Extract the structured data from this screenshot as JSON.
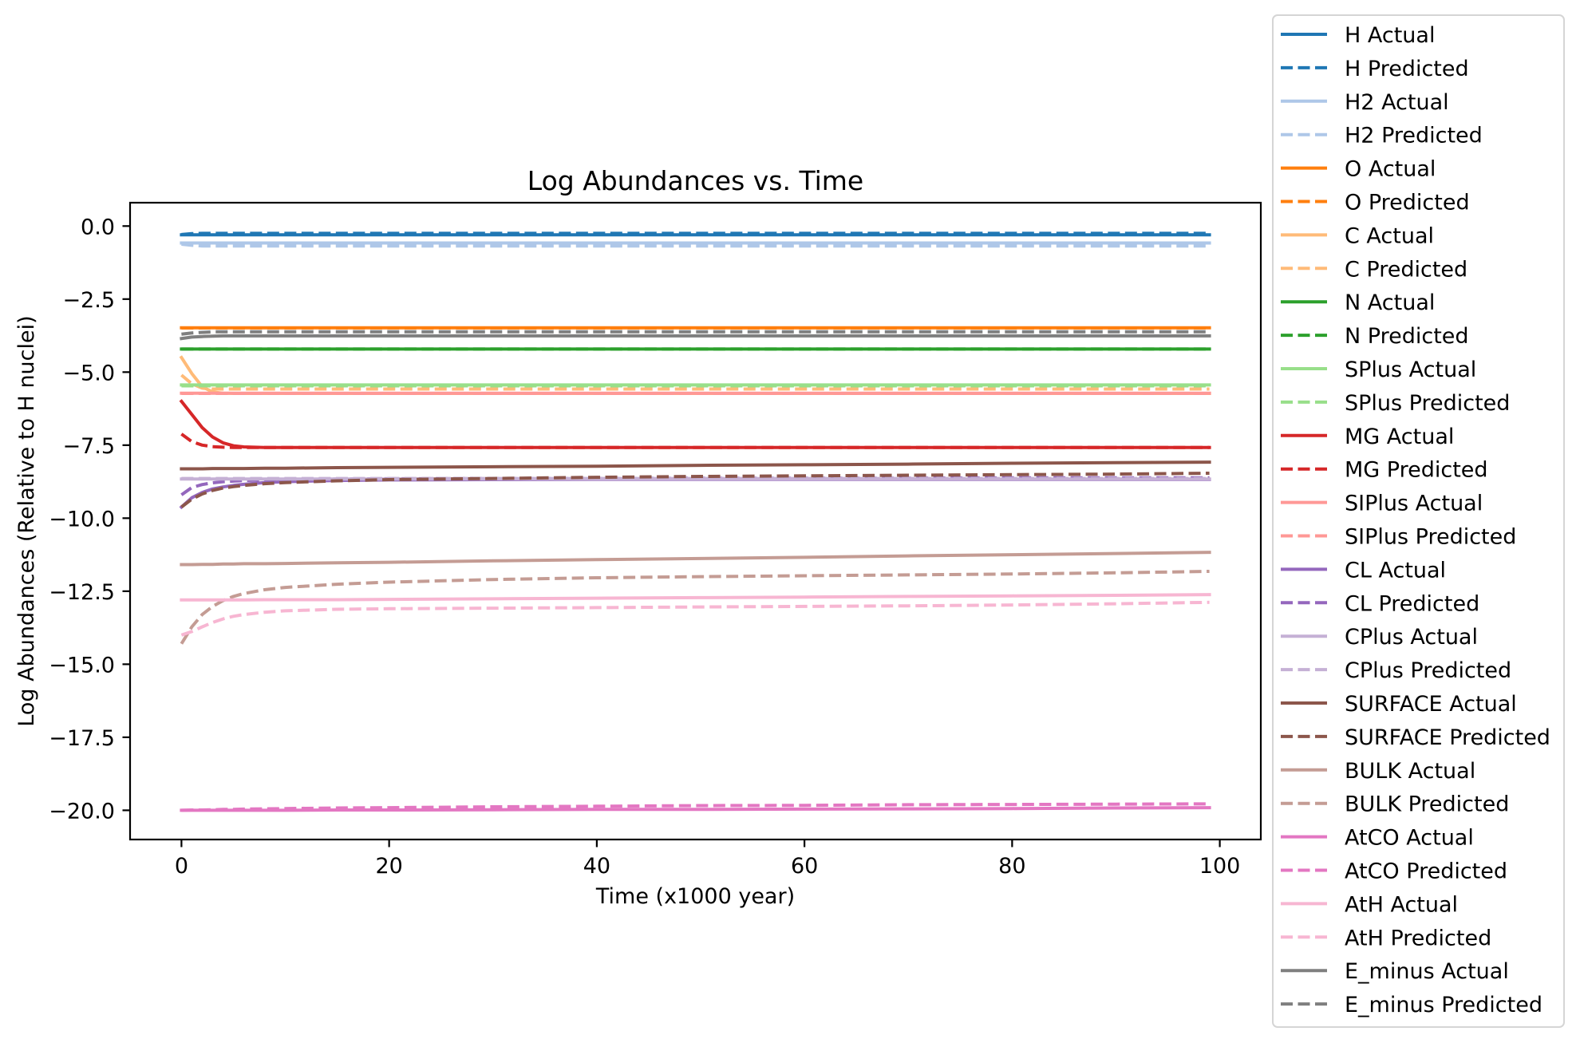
{
  "chart_data": {
    "type": "line",
    "title": "Log Abundances vs. Time",
    "xlabel": "Time (x1000 year)",
    "ylabel": "Log Abundances (Relative to H nuclei)",
    "xlim": [
      -4.95,
      103.95
    ],
    "ylim": [
      -21.0,
      0.8
    ],
    "xticks": [
      0,
      20,
      40,
      60,
      80,
      100
    ],
    "xtick_labels": [
      "0",
      "20",
      "40",
      "60",
      "80",
      "100"
    ],
    "yticks": [
      0,
      -2.5,
      -5,
      -7.5,
      -10,
      -12.5,
      -15,
      -17.5,
      -20
    ],
    "ytick_labels": [
      "0.0",
      "−2.5",
      "−5.0",
      "−7.5",
      "−10.0",
      "−12.5",
      "−15.0",
      "−17.5",
      "−20.0"
    ],
    "grid": false,
    "legend_placement": "outside right",
    "x": [
      0,
      1,
      2,
      3,
      4,
      5,
      6,
      8,
      10,
      15,
      20,
      30,
      40,
      50,
      60,
      70,
      80,
      90,
      99
    ],
    "series": [
      {
        "name": "H Actual",
        "color": "#1f77b4",
        "linestyle": "solid",
        "values": [
          -0.3,
          -0.3,
          -0.3,
          -0.3,
          -0.3,
          -0.3,
          -0.3,
          -0.3,
          -0.3,
          -0.3,
          -0.3,
          -0.3,
          -0.3,
          -0.3,
          -0.3,
          -0.3,
          -0.3,
          -0.3,
          -0.3
        ]
      },
      {
        "name": "H Predicted",
        "color": "#1f77b4",
        "linestyle": "dashed",
        "values": [
          -0.29,
          -0.26,
          -0.25,
          -0.25,
          -0.25,
          -0.25,
          -0.25,
          -0.25,
          -0.25,
          -0.25,
          -0.25,
          -0.25,
          -0.25,
          -0.25,
          -0.25,
          -0.25,
          -0.25,
          -0.25,
          -0.25
        ]
      },
      {
        "name": "H2 Actual",
        "color": "#aec7e8",
        "linestyle": "solid",
        "values": [
          -0.58,
          -0.58,
          -0.58,
          -0.58,
          -0.58,
          -0.58,
          -0.58,
          -0.58,
          -0.58,
          -0.58,
          -0.58,
          -0.58,
          -0.58,
          -0.58,
          -0.58,
          -0.58,
          -0.58,
          -0.58,
          -0.58
        ]
      },
      {
        "name": "H2 Predicted",
        "color": "#aec7e8",
        "linestyle": "dashed",
        "values": [
          -0.62,
          -0.66,
          -0.68,
          -0.68,
          -0.68,
          -0.68,
          -0.68,
          -0.68,
          -0.68,
          -0.68,
          -0.68,
          -0.68,
          -0.68,
          -0.68,
          -0.68,
          -0.68,
          -0.68,
          -0.68,
          -0.68
        ]
      },
      {
        "name": "O Actual",
        "color": "#ff7f0e",
        "linestyle": "solid",
        "values": [
          -3.48,
          -3.48,
          -3.48,
          -3.48,
          -3.48,
          -3.48,
          -3.48,
          -3.48,
          -3.48,
          -3.48,
          -3.48,
          -3.48,
          -3.48,
          -3.48,
          -3.48,
          -3.48,
          -3.48,
          -3.48,
          -3.48
        ]
      },
      {
        "name": "O Predicted",
        "color": "#ff7f0e",
        "linestyle": "dashed",
        "values": [
          -3.49,
          -3.49,
          -3.49,
          -3.49,
          -3.49,
          -3.49,
          -3.49,
          -3.49,
          -3.49,
          -3.49,
          -3.49,
          -3.49,
          -3.49,
          -3.49,
          -3.49,
          -3.49,
          -3.49,
          -3.49,
          -3.49
        ]
      },
      {
        "name": "C Actual",
        "color": "#ffbb78",
        "linestyle": "solid",
        "values": [
          -4.5,
          -5.05,
          -5.5,
          -5.68,
          -5.72,
          -5.73,
          -5.73,
          -5.73,
          -5.73,
          -5.73,
          -5.73,
          -5.73,
          -5.73,
          -5.73,
          -5.73,
          -5.73,
          -5.73,
          -5.73,
          -5.73
        ]
      },
      {
        "name": "C Predicted",
        "color": "#ffbb78",
        "linestyle": "dashed",
        "values": [
          -5.1,
          -5.4,
          -5.55,
          -5.58,
          -5.58,
          -5.58,
          -5.58,
          -5.58,
          -5.58,
          -5.58,
          -5.58,
          -5.58,
          -5.58,
          -5.58,
          -5.58,
          -5.58,
          -5.58,
          -5.58,
          -5.58
        ]
      },
      {
        "name": "N Actual",
        "color": "#2ca02c",
        "linestyle": "solid",
        "values": [
          -4.21,
          -4.21,
          -4.21,
          -4.21,
          -4.21,
          -4.21,
          -4.21,
          -4.21,
          -4.21,
          -4.21,
          -4.21,
          -4.21,
          -4.21,
          -4.21,
          -4.21,
          -4.21,
          -4.21,
          -4.21,
          -4.21
        ]
      },
      {
        "name": "N Predicted",
        "color": "#2ca02c",
        "linestyle": "dashed",
        "values": [
          -4.21,
          -4.21,
          -4.21,
          -4.21,
          -4.21,
          -4.21,
          -4.21,
          -4.21,
          -4.21,
          -4.21,
          -4.21,
          -4.21,
          -4.21,
          -4.21,
          -4.21,
          -4.21,
          -4.21,
          -4.21,
          -4.21
        ]
      },
      {
        "name": "SPlus Actual",
        "color": "#98df8a",
        "linestyle": "solid",
        "values": [
          -5.44,
          -5.44,
          -5.44,
          -5.44,
          -5.44,
          -5.44,
          -5.44,
          -5.44,
          -5.44,
          -5.44,
          -5.44,
          -5.44,
          -5.44,
          -5.44,
          -5.44,
          -5.44,
          -5.44,
          -5.44,
          -5.44
        ]
      },
      {
        "name": "SPlus Predicted",
        "color": "#98df8a",
        "linestyle": "dashed",
        "values": [
          -5.47,
          -5.47,
          -5.47,
          -5.47,
          -5.47,
          -5.47,
          -5.47,
          -5.47,
          -5.47,
          -5.47,
          -5.47,
          -5.47,
          -5.47,
          -5.47,
          -5.47,
          -5.47,
          -5.47,
          -5.47,
          -5.47
        ]
      },
      {
        "name": "MG Actual",
        "color": "#d62728",
        "linestyle": "solid",
        "values": [
          -6.0,
          -6.45,
          -6.9,
          -7.22,
          -7.42,
          -7.52,
          -7.56,
          -7.58,
          -7.58,
          -7.58,
          -7.58,
          -7.58,
          -7.58,
          -7.58,
          -7.58,
          -7.58,
          -7.58,
          -7.58,
          -7.58
        ]
      },
      {
        "name": "MG Predicted",
        "color": "#d62728",
        "linestyle": "dashed",
        "values": [
          -7.12,
          -7.38,
          -7.5,
          -7.55,
          -7.57,
          -7.58,
          -7.58,
          -7.58,
          -7.58,
          -7.58,
          -7.58,
          -7.58,
          -7.58,
          -7.58,
          -7.58,
          -7.58,
          -7.58,
          -7.58,
          -7.58
        ]
      },
      {
        "name": "SIPlus Actual",
        "color": "#ff9896",
        "linestyle": "solid",
        "values": [
          -5.72,
          -5.72,
          -5.72,
          -5.72,
          -5.72,
          -5.72,
          -5.72,
          -5.72,
          -5.72,
          -5.72,
          -5.72,
          -5.72,
          -5.72,
          -5.72,
          -5.72,
          -5.72,
          -5.72,
          -5.72,
          -5.72
        ]
      },
      {
        "name": "SIPlus Predicted",
        "color": "#ff9896",
        "linestyle": "dashed",
        "values": [
          -5.73,
          -5.73,
          -5.73,
          -5.73,
          -5.73,
          -5.73,
          -5.73,
          -5.73,
          -5.73,
          -5.73,
          -5.73,
          -5.73,
          -5.73,
          -5.73,
          -5.73,
          -5.73,
          -5.73,
          -5.73,
          -5.73
        ]
      },
      {
        "name": "CL Actual",
        "color": "#9467bd",
        "linestyle": "solid",
        "values": [
          -9.62,
          -9.3,
          -9.12,
          -9.0,
          -8.93,
          -8.88,
          -8.84,
          -8.78,
          -8.75,
          -8.71,
          -8.69,
          -8.68,
          -8.67,
          -8.67,
          -8.67,
          -8.67,
          -8.67,
          -8.67,
          -8.67
        ]
      },
      {
        "name": "CL Predicted",
        "color": "#9467bd",
        "linestyle": "dashed",
        "values": [
          -9.2,
          -8.95,
          -8.85,
          -8.79,
          -8.75,
          -8.73,
          -8.71,
          -8.69,
          -8.68,
          -8.66,
          -8.65,
          -8.64,
          -8.64,
          -8.63,
          -8.63,
          -8.63,
          -8.62,
          -8.62,
          -8.62
        ]
      },
      {
        "name": "CPlus Actual",
        "color": "#c5b0d5",
        "linestyle": "solid",
        "values": [
          -8.66,
          -8.66,
          -8.66,
          -8.66,
          -8.66,
          -8.66,
          -8.66,
          -8.66,
          -8.66,
          -8.66,
          -8.66,
          -8.66,
          -8.66,
          -8.66,
          -8.66,
          -8.66,
          -8.66,
          -8.66,
          -8.66
        ]
      },
      {
        "name": "CPlus Predicted",
        "color": "#c5b0d5",
        "linestyle": "dashed",
        "values": [
          -8.64,
          -8.64,
          -8.64,
          -8.64,
          -8.64,
          -8.64,
          -8.64,
          -8.64,
          -8.64,
          -8.64,
          -8.64,
          -8.64,
          -8.64,
          -8.64,
          -8.64,
          -8.64,
          -8.64,
          -8.64,
          -8.64
        ]
      },
      {
        "name": "SURFACE Actual",
        "color": "#8c564b",
        "linestyle": "solid",
        "values": [
          -8.31,
          -8.31,
          -8.31,
          -8.3,
          -8.3,
          -8.3,
          -8.3,
          -8.29,
          -8.29,
          -8.27,
          -8.26,
          -8.24,
          -8.22,
          -8.19,
          -8.17,
          -8.15,
          -8.12,
          -8.1,
          -8.08
        ]
      },
      {
        "name": "SURFACE Predicted",
        "color": "#8c564b",
        "linestyle": "dashed",
        "values": [
          -9.62,
          -9.35,
          -9.17,
          -9.05,
          -8.97,
          -8.92,
          -8.88,
          -8.82,
          -8.78,
          -8.72,
          -8.68,
          -8.64,
          -8.6,
          -8.57,
          -8.55,
          -8.53,
          -8.51,
          -8.49,
          -8.46
        ]
      },
      {
        "name": "BULK Actual",
        "color": "#c49c94",
        "linestyle": "solid",
        "values": [
          -11.59,
          -11.59,
          -11.58,
          -11.58,
          -11.57,
          -11.57,
          -11.56,
          -11.56,
          -11.55,
          -11.53,
          -11.51,
          -11.46,
          -11.42,
          -11.38,
          -11.34,
          -11.29,
          -11.25,
          -11.21,
          -11.17
        ]
      },
      {
        "name": "BULK Predicted",
        "color": "#c49c94",
        "linestyle": "dashed",
        "values": [
          -14.3,
          -13.72,
          -13.3,
          -13.02,
          -12.82,
          -12.68,
          -12.58,
          -12.45,
          -12.37,
          -12.26,
          -12.19,
          -12.1,
          -12.04,
          -12.0,
          -11.97,
          -11.94,
          -11.91,
          -11.87,
          -11.82
        ]
      },
      {
        "name": "AtCO Actual",
        "color": "#e377c2",
        "linestyle": "solid",
        "values": [
          -20.0,
          -20.0,
          -20.0,
          -20.0,
          -20.0,
          -20.0,
          -20.0,
          -20.0,
          -20.0,
          -19.99,
          -19.99,
          -19.98,
          -19.97,
          -19.97,
          -19.96,
          -19.95,
          -19.94,
          -19.92,
          -19.91
        ]
      },
      {
        "name": "AtCO Predicted",
        "color": "#e377c2",
        "linestyle": "dashed",
        "values": [
          -20.0,
          -19.99,
          -19.99,
          -19.98,
          -19.97,
          -19.97,
          -19.96,
          -19.95,
          -19.94,
          -19.92,
          -19.91,
          -19.88,
          -19.86,
          -19.84,
          -19.83,
          -19.81,
          -19.8,
          -19.79,
          -19.78
        ]
      },
      {
        "name": "AtH Actual",
        "color": "#f7b6d2",
        "linestyle": "solid",
        "values": [
          -12.8,
          -12.8,
          -12.8,
          -12.8,
          -12.8,
          -12.8,
          -12.8,
          -12.79,
          -12.79,
          -12.79,
          -12.78,
          -12.76,
          -12.74,
          -12.72,
          -12.7,
          -12.68,
          -12.66,
          -12.64,
          -12.62
        ]
      },
      {
        "name": "AtH Predicted",
        "color": "#f7b6d2",
        "linestyle": "dashed",
        "values": [
          -14.0,
          -13.88,
          -13.72,
          -13.57,
          -13.45,
          -13.36,
          -13.3,
          -13.22,
          -13.17,
          -13.12,
          -13.1,
          -13.08,
          -13.06,
          -13.04,
          -13.02,
          -13.0,
          -12.97,
          -12.93,
          -12.88
        ]
      },
      {
        "name": "E_minus Actual",
        "color": "#7f7f7f",
        "linestyle": "solid",
        "values": [
          -3.85,
          -3.8,
          -3.78,
          -3.77,
          -3.76,
          -3.76,
          -3.76,
          -3.76,
          -3.76,
          -3.76,
          -3.76,
          -3.76,
          -3.76,
          -3.76,
          -3.76,
          -3.76,
          -3.76,
          -3.76,
          -3.76
        ]
      },
      {
        "name": "E_minus Predicted",
        "color": "#7f7f7f",
        "linestyle": "dashed",
        "values": [
          -3.7,
          -3.66,
          -3.64,
          -3.62,
          -3.62,
          -3.62,
          -3.62,
          -3.62,
          -3.62,
          -3.62,
          -3.62,
          -3.62,
          -3.62,
          -3.62,
          -3.62,
          -3.62,
          -3.62,
          -3.62,
          -3.62
        ]
      }
    ]
  }
}
